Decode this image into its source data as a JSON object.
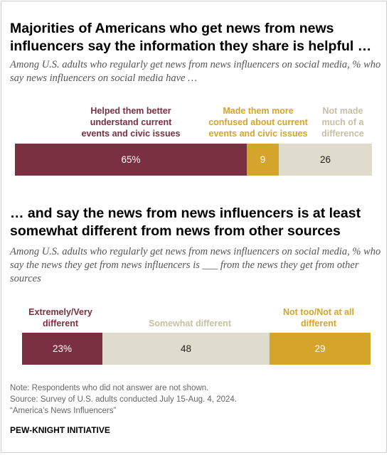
{
  "colors": {
    "maroon": "#7a3040",
    "gold": "#d4a52a",
    "beige": "#e0dccd",
    "beige_label": "#c8c0a4"
  },
  "chart_data": [
    {
      "type": "bar",
      "orientation": "horizontal-stacked",
      "title": "Majorities of Americans who get news from news influencers say the information they share is helpful …",
      "subtitle": "Among U.S. adults who regularly get news from news influencers on social media, % who say news influencers on social media have …",
      "series": [
        {
          "name": "Helped them better understand current events and civic issues",
          "value": 65,
          "label": "65%",
          "color": "#7a3040"
        },
        {
          "name": "Made them more confused about current events and civic issues",
          "value": 9,
          "label": "9",
          "color": "#d4a52a"
        },
        {
          "name": "Not made much of a difference",
          "value": 26,
          "label": "26",
          "color": "#e0dccd"
        }
      ],
      "label_lines": [
        [
          "Helped them better",
          "understand current",
          "events and civic issues"
        ],
        [
          "Made them more",
          "confused about current",
          "events and civic issues"
        ],
        [
          "Not made",
          "much of a",
          "difference"
        ]
      ]
    },
    {
      "type": "bar",
      "orientation": "horizontal-stacked",
      "title": "… and say the news from news influencers is at least somewhat different from news from other sources",
      "subtitle": "Among U.S. adults who regularly get news from news influencers on social media, % who say the news they get from news influencers is ___ from the news they get from other sources",
      "series": [
        {
          "name": "Extremely/Very different",
          "value": 23,
          "label": "23%",
          "color": "#7a3040"
        },
        {
          "name": "Somewhat different",
          "value": 48,
          "label": "48",
          "color": "#e0dccd"
        },
        {
          "name": "Not too/Not at all different",
          "value": 29,
          "label": "29",
          "color": "#d4a52a"
        }
      ],
      "label_lines": [
        [
          "Extremely/Very",
          "different"
        ],
        [
          "Somewhat different"
        ],
        [
          "Not too/Not at all",
          "different"
        ]
      ]
    }
  ],
  "notes": {
    "line1": "Note: Respondents who did not answer are not shown.",
    "line2": "Source: Survey of U.S. adults conducted July 15-Aug. 4, 2024.",
    "line3": "“America’s News Influencers”"
  },
  "brand": "PEW-KNIGHT INITIATIVE"
}
